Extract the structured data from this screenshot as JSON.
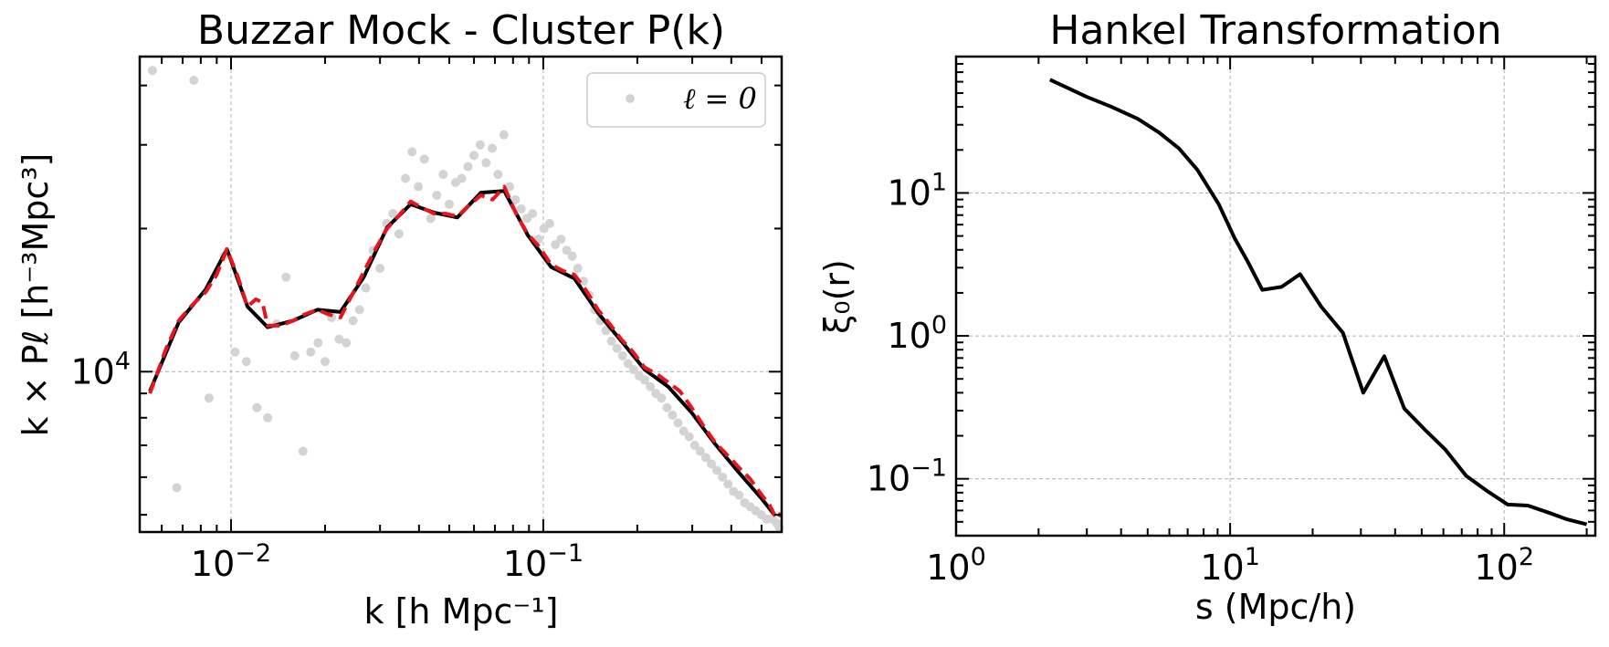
{
  "chart_data": [
    {
      "type": "scatter",
      "title": "Buzzar Mock - Cluster P(k)",
      "xlabel": "k [h Mpc⁻¹]",
      "ylabel": "k × Pℓ [h⁻³Mpc³]",
      "xscale": "log",
      "yscale": "log",
      "xlim": [
        0.0051,
        0.58
      ],
      "ylim": [
        4600,
        46000
      ],
      "xticks": [
        {
          "value": 0.01,
          "base": "10",
          "exp": "−2"
        },
        {
          "value": 0.1,
          "base": "10",
          "exp": "−1"
        }
      ],
      "yticks": [
        {
          "value": 10000,
          "base": "10",
          "exp": "4"
        }
      ],
      "grid": true,
      "legend": {
        "placement": "top-right",
        "entries": [
          "ℓ = 0"
        ]
      },
      "series": [
        {
          "name": "ℓ = 0",
          "style": "scatter",
          "color": "#d3d3d3",
          "x": [
            0.0056,
            0.0067,
            0.0076,
            0.0085,
            0.0095,
            0.0103,
            0.0112,
            0.0121,
            0.0131,
            0.014,
            0.015,
            0.016,
            0.017,
            0.018,
            0.019,
            0.02,
            0.021,
            0.0222,
            0.0234,
            0.0246,
            0.0258,
            0.027,
            0.0285,
            0.03,
            0.0315,
            0.033,
            0.0345,
            0.0362,
            0.038,
            0.0398,
            0.0416,
            0.0436,
            0.0456,
            0.0478,
            0.05,
            0.0524,
            0.0548,
            0.0574,
            0.06,
            0.0628,
            0.0656,
            0.0686,
            0.0716,
            0.0748,
            0.078,
            0.0814,
            0.085,
            0.0886,
            0.0924,
            0.0964,
            0.1005,
            0.1048,
            0.1093,
            0.114,
            0.1188,
            0.1238,
            0.129,
            0.1345,
            0.1402,
            0.1461,
            0.1522,
            0.1586,
            0.1653,
            0.1722,
            0.1794,
            0.1869,
            0.1947,
            0.2029,
            0.2114,
            0.2202,
            0.2294,
            0.239,
            0.249,
            0.2594,
            0.2702,
            0.2815,
            0.2933,
            0.3055,
            0.3183,
            0.3316,
            0.3454,
            0.3598,
            0.3749,
            0.3905,
            0.4068,
            0.4238,
            0.4415,
            0.4599,
            0.4791,
            0.4991,
            0.5199,
            0.5416,
            0.56,
            0.57
          ],
          "y": [
            43000,
            5700,
            41000,
            8800,
            17500,
            11000,
            10500,
            8400,
            8000,
            12600,
            15800,
            10800,
            6800,
            11000,
            11500,
            10500,
            13000,
            11700,
            11500,
            12800,
            13500,
            15000,
            18000,
            16500,
            20500,
            21500,
            19500,
            25500,
            29000,
            24500,
            28000,
            21000,
            23500,
            26000,
            22500,
            25000,
            25500,
            27000,
            28500,
            30000,
            27500,
            29500,
            26000,
            31500,
            24500,
            23000,
            22000,
            21000,
            21500,
            19000,
            20000,
            20500,
            18500,
            19000,
            18000,
            17500,
            16500,
            15500,
            14500,
            13500,
            12800,
            12200,
            11600,
            11200,
            10800,
            10400,
            10100,
            9800,
            9600,
            9300,
            9000,
            8800,
            8400,
            8100,
            7800,
            7500,
            7300,
            7000,
            6800,
            6600,
            6400,
            6200,
            6000,
            5800,
            5600,
            5500,
            5300,
            5200,
            5100,
            5000,
            4900,
            4900,
            4800,
            4700
          ]
        },
        {
          "name": "",
          "style": "line",
          "color": "#000000",
          "x": [
            0.0055,
            0.0068,
            0.0083,
            0.0097,
            0.0113,
            0.0131,
            0.0158,
            0.0189,
            0.0224,
            0.0266,
            0.0316,
            0.0376,
            0.0447,
            0.0531,
            0.0631,
            0.075,
            0.0891,
            0.1059,
            0.1259,
            0.1496,
            0.1778,
            0.2113,
            0.2512,
            0.2985,
            0.3548,
            0.4217,
            0.5012,
            0.55
          ],
          "y": [
            9100,
            12700,
            14900,
            18100,
            13700,
            12400,
            12800,
            13500,
            13350,
            15800,
            20100,
            22500,
            21600,
            21100,
            23800,
            24000,
            19400,
            16600,
            15700,
            13300,
            11600,
            10100,
            9300,
            8200,
            7050,
            6150,
            5400,
            5000
          ]
        },
        {
          "name": "",
          "style": "dashed",
          "color": "#e8141e",
          "x": [
            0.0055,
            0.0062,
            0.0068,
            0.0075,
            0.0083,
            0.009,
            0.0097,
            0.0105,
            0.0113,
            0.012,
            0.0126,
            0.0131,
            0.0145,
            0.0158,
            0.0172,
            0.0189,
            0.0205,
            0.0224,
            0.0244,
            0.0266,
            0.029,
            0.0316,
            0.0345,
            0.0376,
            0.041,
            0.0447,
            0.0487,
            0.0531,
            0.0579,
            0.0631,
            0.0688,
            0.075,
            0.0818,
            0.0891,
            0.0972,
            0.1059,
            0.1155,
            0.1259,
            0.1373,
            0.1496,
            0.1632,
            0.1778,
            0.1939,
            0.2113,
            0.2304,
            0.2512,
            0.2738,
            0.2985,
            0.3255,
            0.3548,
            0.3868,
            0.4217,
            0.4597,
            0.5012,
            0.53,
            0.55,
            0.565,
            0.575
          ],
          "y": [
            9000,
            11200,
            12800,
            13800,
            14700,
            16000,
            18100,
            15900,
            13700,
            14200,
            14000,
            12500,
            12500,
            12800,
            13200,
            13500,
            13200,
            13000,
            14500,
            16200,
            18100,
            20000,
            21300,
            22800,
            22100,
            21500,
            21500,
            21200,
            22400,
            23500,
            23000,
            24500,
            21500,
            19500,
            18300,
            16800,
            16300,
            16000,
            14800,
            13500,
            12600,
            11700,
            11000,
            10200,
            9900,
            9500,
            9100,
            8400,
            7700,
            7100,
            6700,
            6300,
            5950,
            5500,
            5250,
            5000,
            4900,
            5050
          ]
        }
      ]
    },
    {
      "type": "line",
      "title": "Hankel Transformation",
      "xlabel": "s (Mpc/h)",
      "ylabel": "ξ₀(r)",
      "xscale": "log",
      "yscale": "log",
      "xlim": [
        1,
        215
      ],
      "ylim": [
        0.04,
        90
      ],
      "xticks": [
        {
          "value": 1,
          "base": "10",
          "exp": "0"
        },
        {
          "value": 10,
          "base": "10",
          "exp": "1"
        },
        {
          "value": 100,
          "base": "10",
          "exp": "2"
        }
      ],
      "yticks": [
        {
          "value": 0.1,
          "base": "10",
          "exp": "−1"
        },
        {
          "value": 1,
          "base": "10",
          "exp": "0"
        },
        {
          "value": 10,
          "base": "10",
          "exp": "1"
        }
      ],
      "grid": true,
      "series": [
        {
          "name": "",
          "style": "line",
          "color": "#000000",
          "x": [
            2.2,
            3.0,
            3.7,
            4.6,
            5.5,
            6.5,
            7.6,
            9.1,
            10.4,
            11.6,
            13.1,
            15.4,
            18.0,
            21.5,
            25.8,
            30.6,
            36.5,
            43.2,
            51.4,
            61.0,
            72.6,
            86.0,
            103.0,
            122.0,
            145.0,
            170.0,
            200.0
          ],
          "y": [
            62,
            47,
            40,
            33,
            26.5,
            20.5,
            14.5,
            8.3,
            4.8,
            3.3,
            2.1,
            2.2,
            2.7,
            1.6,
            1.05,
            0.4,
            0.72,
            0.31,
            0.22,
            0.16,
            0.105,
            0.083,
            0.066,
            0.065,
            0.058,
            0.052,
            0.048
          ]
        }
      ]
    }
  ]
}
